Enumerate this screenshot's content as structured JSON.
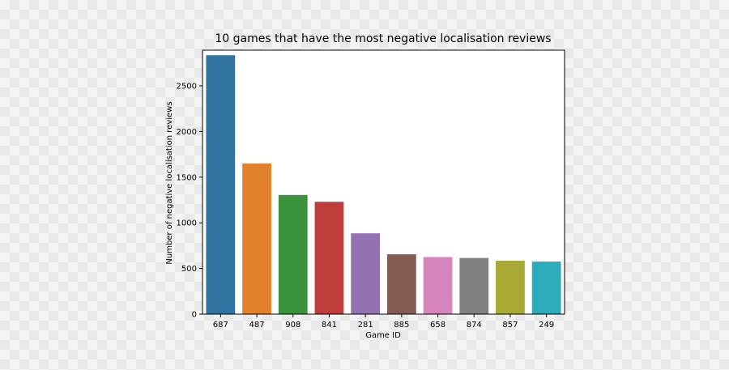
{
  "chart_data": {
    "type": "bar",
    "title": "10 games that have the most negative localisation reviews",
    "xlabel": "Game ID",
    "ylabel": "Number of negative localisation reviews",
    "categories": [
      "687",
      "487",
      "908",
      "841",
      "281",
      "885",
      "658",
      "874",
      "857",
      "249"
    ],
    "values": [
      2835,
      1650,
      1305,
      1230,
      885,
      655,
      625,
      615,
      585,
      575
    ],
    "colors": [
      "#3274a1",
      "#e1812c",
      "#3a923a",
      "#c03d3e",
      "#9372b2",
      "#845b53",
      "#d684bd",
      "#7f7f7f",
      "#a9aa35",
      "#2eabb8"
    ],
    "ylim": [
      0,
      2890
    ],
    "yticks": [
      0,
      500,
      1000,
      1500,
      2000,
      2500
    ],
    "grid": false,
    "legend": false
  }
}
